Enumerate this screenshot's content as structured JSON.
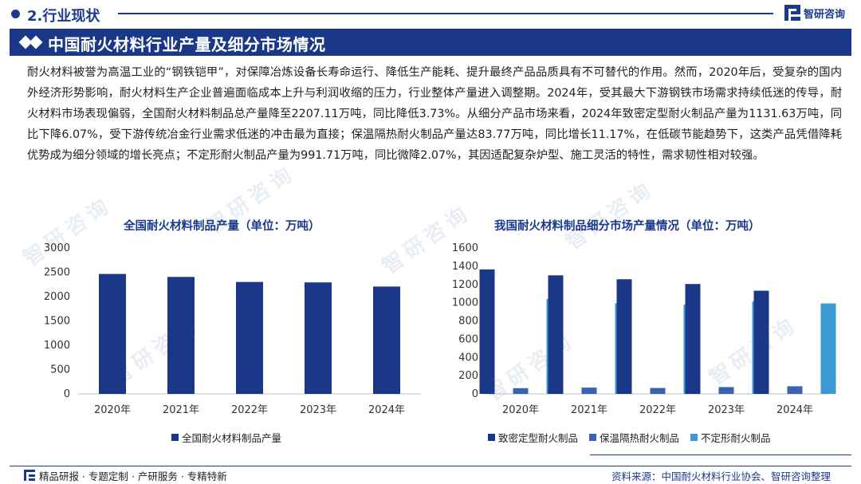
{
  "header": {
    "section_label": "2.行业现状",
    "brand_name": "智研咨询",
    "title": "中国耐火材料行业产量及细分市场情况"
  },
  "intro_text": "耐火材料被誉为高温工业的“钢铁铠甲”，对保障冶炼设备长寿命运行、降低生产能耗、提升最终产品品质具有不可替代的作用。然而，2020年后，受复杂的国内外经济形势影响，耐火材料生产企业普遍面临成本上升与利润收缩的压力，行业整体产量进入调整期。2024年，受其最大下游钢铁市场需求持续低迷的传导，耐火材料市场表现偏弱，全国耐火材料制品总产量降至2207.11万吨，同比降低3.73%。从细分产品市场来看，2024年致密定型耐火制品产量为1131.63万吨，同比下降6.07%，受下游传统冶金行业需求低迷的冲击最为直接；保温隔热耐火制品产量达83.77万吨，同比增长11.17%，在低碳节能趋势下，这类产品凭借降耗优势成为细分领域的增长亮点；不定形耐火制品产量为991.71万吨，同比微降2.07%，其因适配复杂炉型、施工灵活的特性，需求韧性相对较强。",
  "watermark_text": "智研咨询",
  "chart_data": [
    {
      "type": "bar",
      "title": "全国耐火材料制品产量（单位：万吨）",
      "categories": [
        "2020年",
        "2021年",
        "2022年",
        "2023年",
        "2024年"
      ],
      "series": [
        {
          "name": "全国耐火材料制品产量",
          "color": "#1a3887",
          "values": [
            2466,
            2405,
            2301,
            2292,
            2207.11
          ]
        }
      ],
      "ylim": [
        0,
        3000
      ],
      "yticks": [
        0,
        500,
        1000,
        1500,
        2000,
        2500,
        3000
      ],
      "legend_position": "bottom",
      "grid": false
    },
    {
      "type": "bar",
      "title": "我国耐火材料制品细分市场产量情况（单位：万吨）",
      "categories": [
        "2020年",
        "2021年",
        "2022年",
        "2023年",
        "2024年"
      ],
      "series": [
        {
          "name": "致密定型耐火制品",
          "color": "#1a3887",
          "values": [
            1365,
            1300,
            1257,
            1205,
            1131.63
          ]
        },
        {
          "name": "保温隔热耐火制品",
          "color": "#3a62b0",
          "values": [
            63,
            69,
            65,
            75,
            83.77
          ]
        },
        {
          "name": "不定形耐火制品",
          "color": "#3b9ad6",
          "values": [
            1042,
            994,
            980,
            1013,
            991.71
          ]
        }
      ],
      "ylim": [
        0,
        1600
      ],
      "yticks": [
        0,
        200,
        400,
        600,
        800,
        1000,
        1200,
        1400,
        1600
      ],
      "legend_position": "bottom",
      "grid": false
    }
  ],
  "footer": {
    "slogan": "精品研报 · 专题定制 · 产研服务 · 专精特新",
    "source": "资料来源：中国耐火材料行业协会、智研咨询整理"
  }
}
